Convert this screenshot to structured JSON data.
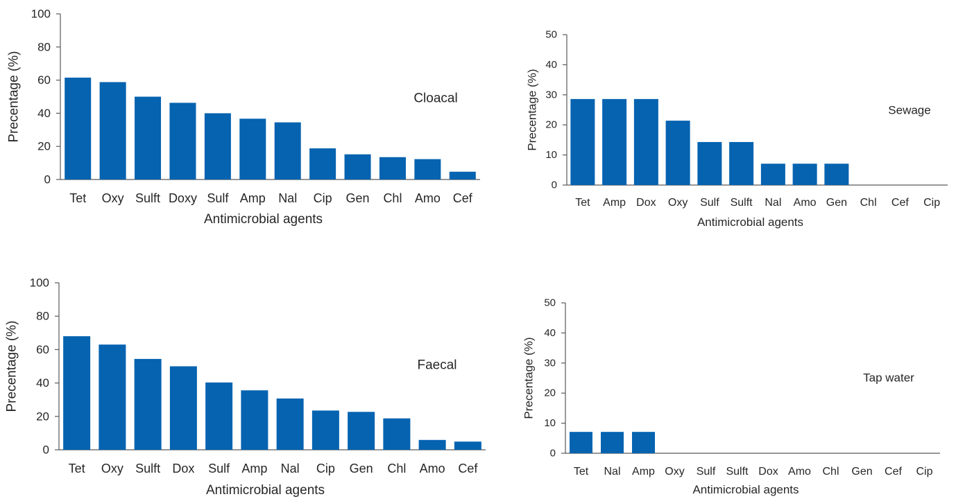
{
  "colors": {
    "bar": "#0563b0",
    "axis": "#595959",
    "text": "#262626",
    "panel_label": "#1f3864"
  },
  "chart_data": [
    {
      "type": "bar",
      "panel_label": "Cloacal",
      "categories": [
        "Tet",
        "Oxy",
        "Sulft",
        "Doxy",
        "Sulf",
        "Amp",
        "Nal",
        "Cip",
        "Gen",
        "Chl",
        "Amo",
        "Cef"
      ],
      "values": [
        61.5,
        58.8,
        50.0,
        46.3,
        40.0,
        36.7,
        34.5,
        18.8,
        15.2,
        13.5,
        12.3,
        4.7
      ],
      "xlabel": "Antimicrobial agents",
      "ylabel": "Precentage (%)",
      "ylim": [
        0,
        100
      ],
      "yticks": [
        0,
        20,
        40,
        60,
        80,
        100
      ],
      "grid": false
    },
    {
      "type": "bar",
      "panel_label": "Sewage",
      "categories": [
        "Tet",
        "Amp",
        "Dox",
        "Oxy",
        "Sulf",
        "Sulft",
        "Nal",
        "Amo",
        "Gen",
        "Chl",
        "Cef",
        "Cip"
      ],
      "values": [
        28.6,
        28.6,
        28.6,
        21.4,
        14.3,
        14.3,
        7.1,
        7.1,
        7.1,
        0,
        0,
        0
      ],
      "xlabel": "Antimicrobial agents",
      "ylabel": "Precentage (%)",
      "ylim": [
        0,
        50
      ],
      "yticks": [
        0,
        10,
        20,
        30,
        40,
        50
      ],
      "grid": false
    },
    {
      "type": "bar",
      "panel_label": "Faecal",
      "categories": [
        "Tet",
        "Oxy",
        "Sulft",
        "Dox",
        "Sulf",
        "Amp",
        "Nal",
        "Cip",
        "Gen",
        "Chl",
        "Amo",
        "Cef"
      ],
      "values": [
        68.0,
        63.0,
        54.4,
        50.0,
        40.3,
        35.6,
        30.7,
        23.5,
        22.7,
        18.8,
        5.9,
        4.9
      ],
      "xlabel": "Antimicrobial agents",
      "ylabel": "Precentage (%)",
      "ylim": [
        0,
        100
      ],
      "yticks": [
        0,
        20,
        40,
        60,
        80,
        100
      ],
      "grid": false
    },
    {
      "type": "bar",
      "panel_label": "Tap water",
      "categories": [
        "Tet",
        "Nal",
        "Amp",
        "Oxy",
        "Sulf",
        "Sulft",
        "Dox",
        "Amo",
        "Chl",
        "Gen",
        "Cef",
        "Cip"
      ],
      "values": [
        7.1,
        7.1,
        7.1,
        0,
        0,
        0,
        0,
        0,
        0,
        0,
        0,
        0
      ],
      "xlabel": "Antimicrobial agents",
      "ylabel": "Precentage (%)",
      "ylim": [
        0,
        50
      ],
      "yticks": [
        0,
        10,
        20,
        30,
        40,
        50
      ],
      "grid": false
    }
  ]
}
